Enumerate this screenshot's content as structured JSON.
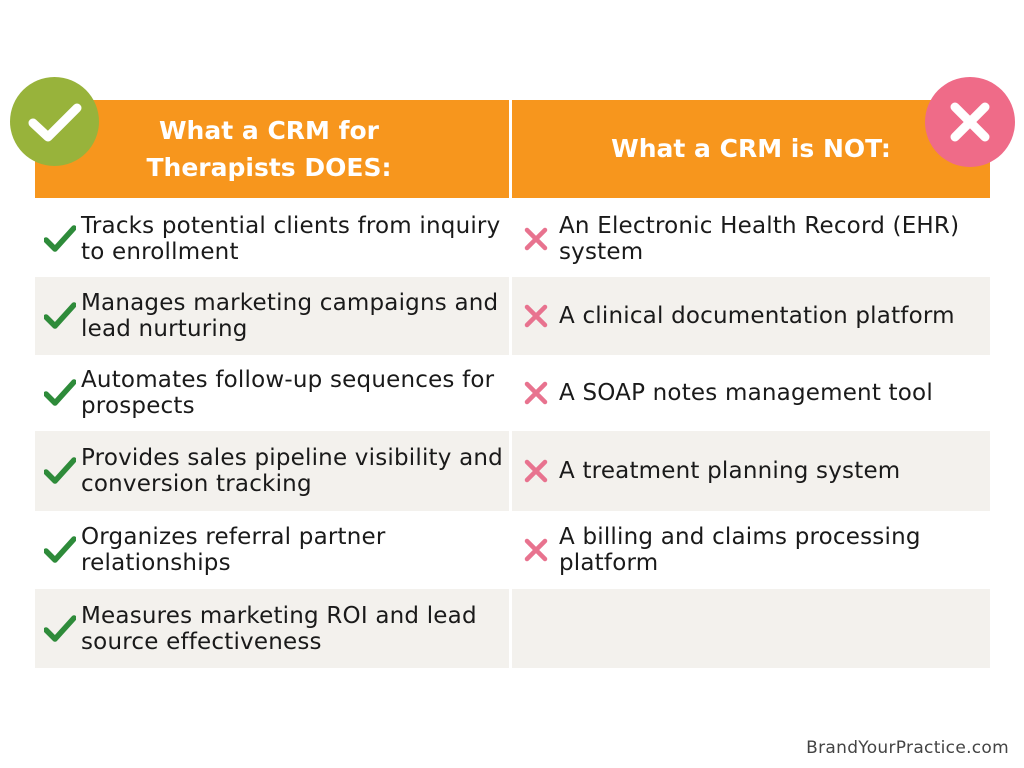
{
  "headers": {
    "does": "What a CRM for\nTherapists DOES:",
    "not": "What a CRM is NOT:"
  },
  "rows": [
    {
      "does": "Tracks potential clients from inquiry to enrollment",
      "not": "An Electronic Health Record (EHR) system"
    },
    {
      "does": "Manages marketing campaigns and lead nurturing",
      "not": "A clinical documentation platform"
    },
    {
      "does": "Automates follow-up sequences for prospects",
      "not": "A SOAP notes management tool"
    },
    {
      "does": "Provides sales pipeline visibility and conversion tracking",
      "not": "A treatment planning system"
    },
    {
      "does": "Organizes referral partner relationships",
      "not": "A billing and claims processing platform"
    },
    {
      "does": "Measures marketing ROI and lead source effectiveness",
      "not": ""
    }
  ],
  "footer": "BrandYourPractice.com",
  "icons": {
    "does_badge": "checkmark-badge-icon",
    "not_badge": "x-badge-icon",
    "row_check": "check-icon",
    "row_x": "x-icon"
  },
  "colors": {
    "header": "#f7961d",
    "check_badge": "#98b33b",
    "x_badge": "#ef6b88",
    "check": "#2e8b3a",
    "x": "#e8738f",
    "shaded_row": "#f3f1ed"
  }
}
